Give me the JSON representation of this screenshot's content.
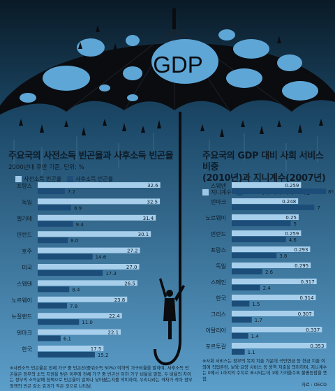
{
  "umbrella_label": "GDP",
  "colors": {
    "series_a": "#9dc8e8",
    "series_b": "#1f4f78",
    "bar_a": "#a7cfec",
    "bar_b": "#1c4d79"
  },
  "chart_data": [
    {
      "type": "bar",
      "title": "주요국의 사전소득 빈곤율과 사후소득 빈곤율",
      "subtitle": "2000년대 후반 기준, 단위: %",
      "categories": [
        "프랑스",
        "독일",
        "벨기에",
        "핀란드",
        "호주",
        "미국",
        "스웨덴",
        "노르웨이",
        "뉴질랜드",
        "덴마크",
        "한국"
      ],
      "series": [
        {
          "name": "사전소득 빈곤율",
          "values": [
            "32.6",
            "32.5",
            "31.4",
            "30.1",
            "27.2",
            "27.0",
            "26.5",
            "23.8",
            "22.4",
            "22.1",
            "17.5"
          ]
        },
        {
          "name": "사후소득 빈곤율",
          "values": [
            "7.2",
            "8.9",
            "9.4",
            "8.0",
            "14.6",
            "17.3",
            "8.4",
            "7.8",
            "11.0",
            "6.1",
            "15.2"
          ]
        }
      ],
      "xlim": [
        0,
        36
      ]
    },
    {
      "type": "bar",
      "title": "주요국의 GDP 대비 사회 서비스 비중",
      "title2": "(2010년)과 지니계수(2007년)",
      "categories": [
        "스웨덴",
        "덴마크",
        "노르웨이",
        "핀란드",
        "프랑스",
        "독일",
        "스페인",
        "한국",
        "그리스",
        "이탈리아",
        "포르투갈"
      ],
      "series": [
        {
          "name": "지니계수",
          "values": [
            "0.259",
            "0.248",
            "0.25",
            "0.259",
            "0.293",
            "0.295",
            "0.317",
            "0.314",
            "0.307",
            "0.337",
            "0.353"
          ]
        },
        {
          "name": "GDP 대비 사회 서비스 비중",
          "values": [
            "8%",
            "7",
            "5",
            "4.6",
            "3.8",
            "2.6",
            "2.4",
            "1.5",
            "1.7",
            "1.4",
            "1.1"
          ]
        }
      ],
      "xlim_a": [
        0,
        0.37
      ],
      "xlim_b": [
        0,
        8.4
      ]
    }
  ],
  "footnote": "※사전소득 빈곤율은 전체 가구 중 빈곤선(중위소득 50%) 이하의 가구비율을 말하며, 사후소득 빈곤율은 정부의 소득 지원을 받은 이후에 전체 가구 중 빈곤선 이하 가구 비율을 말함. 두 비율의 차이는 정부의 소득분배 정책으로 빈곤율이 얼마나 낮아졌는지를 의미하며, 우리나라는 격차가 작아 정부정책의 빈곤 감소 효과가 적은 것으로 나타남.",
  "footnote2": "※사회 서비스는 정부의 복지 지출 가운데 국민연금 등 현금 지출 이외에 직업훈련, 보육·요양 서비스 등 용역 지출을 의미하며, 지니계수는 0에서 1까지의 수치로 표시되는데 1에 가까울수록 불평등함을 뜻함.",
  "source": "자료 : OECD"
}
